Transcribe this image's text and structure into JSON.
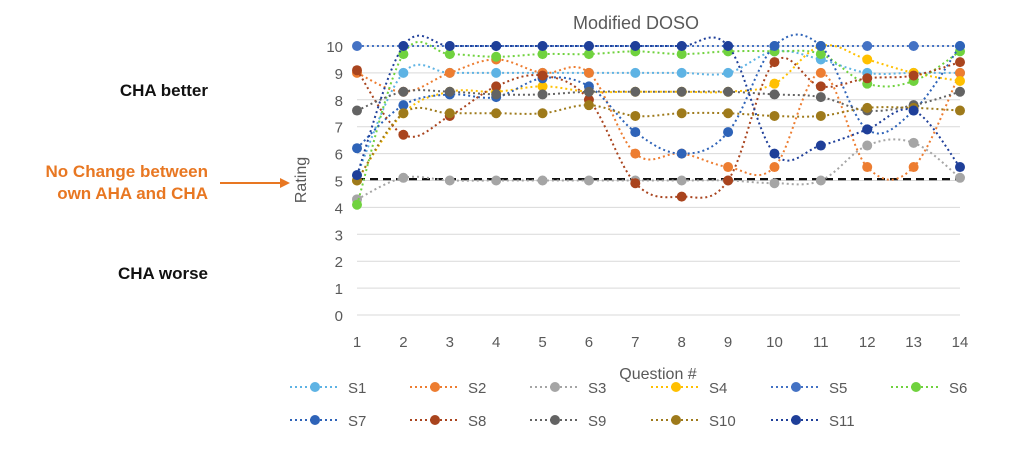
{
  "side_labels": {
    "better": "CHA better",
    "no_change_line1": "No Change between",
    "no_change_line2": "own AHA and CHA",
    "worse": "CHA worse"
  },
  "colors": {
    "no_change_label": "#e87722",
    "reference_line": "#111111",
    "grid": "#d9d9d9",
    "axis_text": "#595959"
  },
  "chart_data": {
    "type": "line",
    "title": "Modified DOSO",
    "xlabel": "Question #",
    "ylabel": "Rating",
    "x": [
      1,
      2,
      3,
      4,
      5,
      6,
      7,
      8,
      9,
      10,
      11,
      12,
      13,
      14
    ],
    "x_ticks": [
      "1",
      "2",
      "3",
      "4",
      "5",
      "6",
      "7",
      "8",
      "9",
      "10",
      "11",
      "12",
      "13",
      "14"
    ],
    "ylim": [
      0,
      10
    ],
    "y_ticks": [
      "0",
      "1",
      "2",
      "3",
      "4",
      "5",
      "6",
      "7",
      "8",
      "9",
      "10"
    ],
    "grid": "horizontal",
    "legend_position": "bottom",
    "reference_value": 5.05,
    "series": [
      {
        "name": "S1",
        "color": "#5eb3e4",
        "values": [
          5.2,
          9.0,
          9.0,
          9.0,
          9.0,
          9.0,
          9.0,
          9.0,
          9.0,
          9.8,
          9.5,
          9.0,
          9.0,
          9.0
        ]
      },
      {
        "name": "S2",
        "color": "#ed7d31",
        "values": [
          9.0,
          8.3,
          9.0,
          9.5,
          9.0,
          9.0,
          6.0,
          6.0,
          5.5,
          5.5,
          9.0,
          5.5,
          5.5,
          9.0
        ]
      },
      {
        "name": "S3",
        "color": "#a5a5a5",
        "values": [
          4.3,
          5.1,
          5.0,
          5.0,
          5.0,
          5.0,
          5.0,
          5.0,
          5.0,
          4.9,
          5.0,
          6.3,
          6.4,
          5.1
        ]
      },
      {
        "name": "S4",
        "color": "#ffc000",
        "values": [
          5.0,
          7.5,
          8.3,
          8.3,
          8.5,
          8.3,
          8.3,
          8.3,
          8.3,
          8.6,
          10.0,
          9.5,
          9.0,
          8.7
        ]
      },
      {
        "name": "S5",
        "color": "#4472c4",
        "values": [
          10.0,
          10.0,
          10.0,
          10.0,
          10.0,
          10.0,
          10.0,
          10.0,
          10.0,
          10.0,
          10.0,
          10.0,
          10.0,
          10.0
        ]
      },
      {
        "name": "S6",
        "color": "#70d23e",
        "values": [
          4.1,
          9.7,
          9.7,
          9.6,
          9.7,
          9.7,
          9.8,
          9.7,
          9.8,
          9.8,
          9.7,
          8.6,
          8.7,
          9.8
        ]
      },
      {
        "name": "S7",
        "color": "#2e63b8",
        "values": [
          6.2,
          7.8,
          8.2,
          8.1,
          8.8,
          8.5,
          6.8,
          6.0,
          6.8,
          10.0,
          10.0,
          6.9,
          7.6,
          10.0
        ]
      },
      {
        "name": "S8",
        "color": "#a9441e",
        "values": [
          9.1,
          6.7,
          7.4,
          8.5,
          8.9,
          8.0,
          4.9,
          4.4,
          5.0,
          9.4,
          8.5,
          8.8,
          8.9,
          9.4
        ]
      },
      {
        "name": "S9",
        "color": "#636363",
        "values": [
          7.6,
          8.3,
          8.3,
          8.2,
          8.2,
          8.3,
          8.3,
          8.3,
          8.3,
          8.2,
          8.1,
          7.6,
          7.8,
          8.3
        ]
      },
      {
        "name": "S10",
        "color": "#9e7a1b",
        "values": [
          5.0,
          7.5,
          7.5,
          7.5,
          7.5,
          7.8,
          7.4,
          7.5,
          7.5,
          7.4,
          7.4,
          7.7,
          7.7,
          7.6
        ]
      },
      {
        "name": "S11",
        "color": "#1f3f99",
        "values": [
          5.2,
          10.0,
          10.0,
          10.0,
          10.0,
          10.0,
          10.0,
          10.0,
          10.0,
          6.0,
          6.3,
          6.9,
          7.6,
          5.5
        ]
      }
    ]
  }
}
